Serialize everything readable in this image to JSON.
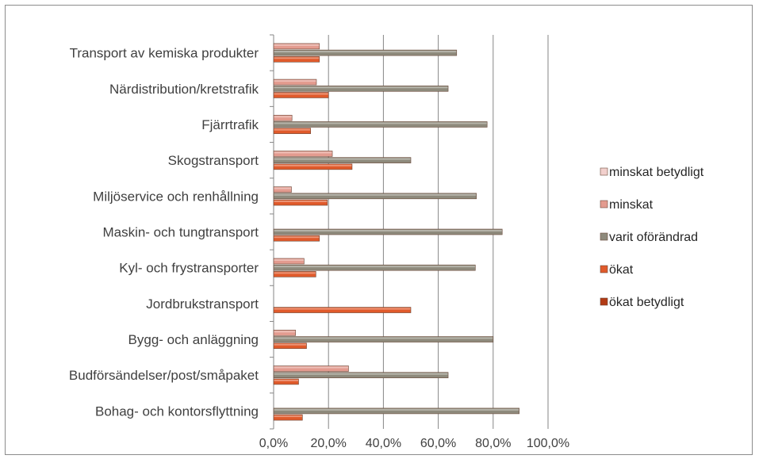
{
  "chart_data": {
    "type": "bar",
    "orientation": "horizontal",
    "categories": [
      "Transport av kemiska produkter",
      "Närdistribution/kretstrafik",
      "Fjärrtrafik",
      "Skogstransport",
      "Miljöservice och renhållning",
      "Maskin- och tungtransport",
      "Kyl- och frystransporter",
      "Jordbrukstransport",
      "Bygg- och anläggning",
      "Budförsändelser/post/småpaket",
      "Bohag- och kontorsflyttning"
    ],
    "series": [
      {
        "name": "minskat betydligt",
        "color": "#f2d0cd",
        "values": [
          0,
          0,
          0,
          0,
          0,
          0,
          0,
          0,
          0,
          0,
          0
        ]
      },
      {
        "name": "minskat",
        "color": "#e39b8f",
        "values": [
          16.7,
          15.6,
          6.7,
          21.4,
          6.5,
          0,
          11.1,
          0,
          8.0,
          27.3,
          0
        ]
      },
      {
        "name": "varit oförändrad",
        "color": "#8e8a7c",
        "values": [
          66.7,
          63.6,
          77.8,
          50.0,
          73.9,
          83.3,
          73.5,
          0,
          80.0,
          63.6,
          89.5
        ]
      },
      {
        "name": "ökat",
        "color": "#e05a2b",
        "values": [
          16.7,
          20.0,
          13.5,
          28.6,
          19.6,
          16.7,
          15.4,
          50.0,
          12.0,
          9.1,
          10.5
        ]
      },
      {
        "name": "ökat betydligt",
        "color": "#b23a14",
        "values": [
          0,
          0,
          0,
          0,
          0,
          0,
          0,
          0,
          0,
          0,
          0
        ]
      }
    ],
    "xticks": [
      "0,0%",
      "20,0%",
      "40,0%",
      "60,0%",
      "80,0%",
      "100,0%"
    ],
    "xlim": [
      0,
      100
    ],
    "grid": true,
    "legend_position": "right"
  }
}
